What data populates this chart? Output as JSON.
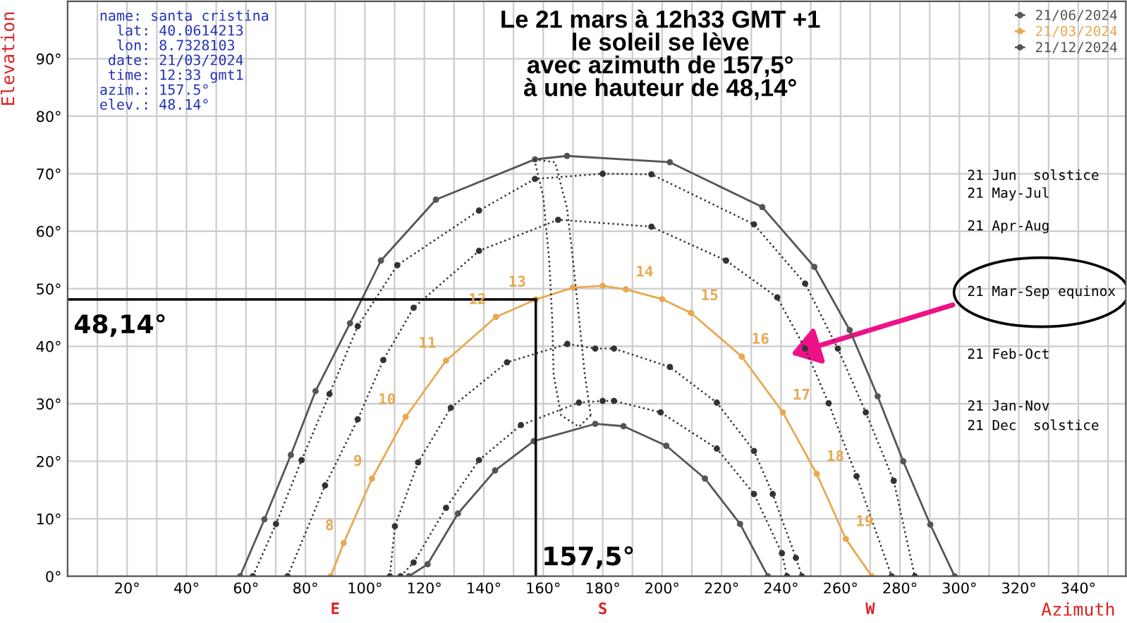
{
  "chart_data": {
    "type": "line",
    "xlabel": "Azimuth",
    "ylabel": "Elevation",
    "xlim": [
      0,
      356
    ],
    "ylim": [
      0,
      100
    ],
    "xticks": [
      {
        "value": 10,
        "label": null
      },
      {
        "value": 20,
        "label": "20°"
      },
      {
        "value": 30,
        "label": null
      },
      {
        "value": 40,
        "label": "40°"
      },
      {
        "value": 50,
        "label": null
      },
      {
        "value": 60,
        "label": "60°"
      },
      {
        "value": 70,
        "label": null
      },
      {
        "value": 80,
        "label": "80°"
      },
      {
        "value": 90,
        "label": null
      },
      {
        "value": 100,
        "label": "100°"
      },
      {
        "value": 110,
        "label": null
      },
      {
        "value": 120,
        "label": "120°"
      },
      {
        "value": 130,
        "label": null
      },
      {
        "value": 140,
        "label": "140°"
      },
      {
        "value": 150,
        "label": null
      },
      {
        "value": 160,
        "label": "160°"
      },
      {
        "value": 170,
        "label": null
      },
      {
        "value": 180,
        "label": "180°"
      },
      {
        "value": 190,
        "label": null
      },
      {
        "value": 200,
        "label": "200°"
      },
      {
        "value": 210,
        "label": null
      },
      {
        "value": 220,
        "label": "220°"
      },
      {
        "value": 230,
        "label": null
      },
      {
        "value": 240,
        "label": "240°"
      },
      {
        "value": 250,
        "label": null
      },
      {
        "value": 260,
        "label": "260°"
      },
      {
        "value": 270,
        "label": null
      },
      {
        "value": 280,
        "label": "280°"
      },
      {
        "value": 290,
        "label": null
      },
      {
        "value": 300,
        "label": "300°"
      },
      {
        "value": 310,
        "label": null
      },
      {
        "value": 320,
        "label": "320°"
      },
      {
        "value": 330,
        "label": null
      },
      {
        "value": 340,
        "label": "340°"
      },
      {
        "value": 350,
        "label": null
      }
    ],
    "yticks": [
      {
        "value": 0,
        "label": "0°"
      },
      {
        "value": 10,
        "label": "10°"
      },
      {
        "value": 20,
        "label": "20°"
      },
      {
        "value": 30,
        "label": "30°"
      },
      {
        "value": 40,
        "label": "40°"
      },
      {
        "value": 50,
        "label": "50°"
      },
      {
        "value": 60,
        "label": "60°"
      },
      {
        "value": 70,
        "label": "70°"
      },
      {
        "value": 80,
        "label": "80°"
      },
      {
        "value": 90,
        "label": "90°"
      }
    ],
    "grid": true,
    "legend": "top right",
    "marker": "circle",
    "series": [
      {
        "name": "21/06/2024",
        "color": "#555555",
        "line_style": "solid",
        "x": [
          58,
          66.2,
          75.1,
          83.4,
          95,
          105.4,
          123.9,
          157.2,
          168,
          202.6,
          233.7,
          251.2,
          263.1,
          272.5,
          281.1,
          290.2,
          298.4
        ],
        "values": [
          0,
          9.9,
          21.1,
          32.2,
          44,
          54.9,
          65.5,
          72.5,
          73.1,
          72,
          64.2,
          53.8,
          42.8,
          31.3,
          20,
          9,
          0
        ]
      },
      {
        "color": "#333333",
        "line_style": "dotted",
        "x": [
          62.3,
          70.1,
          78.7,
          88.1,
          97.6,
          110.9,
          138.4,
          157.2,
          180,
          196.4,
          230.9,
          248.1,
          259.1,
          268.5,
          277.9,
          285
        ],
        "values": [
          0,
          9.1,
          20.2,
          31.7,
          43.5,
          54.1,
          63.6,
          69.1,
          70,
          69.9,
          61.2,
          50.9,
          39.6,
          28.5,
          16.6,
          0
        ]
      },
      {
        "color": "#333333",
        "line_style": "dotted",
        "x": [
          74,
          86.6,
          97.6,
          106.2,
          116.4,
          138.4,
          165,
          196.4,
          221.5,
          238.7,
          248.1,
          256,
          265.4,
          277.2
        ],
        "values": [
          0,
          15.8,
          27.3,
          37.6,
          46.7,
          56.6,
          62,
          60.8,
          54.9,
          48.5,
          39.6,
          30.1,
          17.4,
          0
        ]
      },
      {
        "name": "21/03/2024",
        "color": "#e8a850",
        "line_style": "solid",
        "x": [
          88.5,
          92.9,
          102.4,
          113.7,
          127.3,
          144.1,
          157.5,
          170,
          180,
          187.8,
          200,
          209.7,
          226.8,
          240.6,
          252,
          261.8,
          270.5
        ],
        "values": [
          0,
          5.8,
          17,
          27.7,
          37.5,
          45.1,
          48.14,
          50.2,
          50.5,
          49.9,
          48.2,
          45.8,
          38.2,
          28.5,
          17.8,
          6.5,
          0
        ]
      },
      {
        "color": "#333333",
        "line_style": "dotted",
        "x": [
          108.4,
          110.1,
          117.9,
          128.9,
          147.8,
          168.1,
          177.5,
          183.8,
          202.6,
          218.4,
          230.9,
          237.2,
          245,
          247
        ],
        "values": [
          0,
          8.7,
          19.8,
          29.3,
          37.2,
          40.4,
          39.6,
          39.6,
          36.4,
          30.2,
          21.8,
          14.3,
          3.2,
          0
        ]
      },
      {
        "color": "#333333",
        "line_style": "dotted",
        "x": [
          112,
          116.4,
          127.3,
          138.4,
          152.5,
          172,
          180,
          183.8,
          199.5,
          218.4,
          230.9,
          240.3,
          242
        ],
        "values": [
          0,
          2.4,
          11.9,
          20.2,
          26.3,
          30.2,
          30.5,
          30.5,
          28.5,
          22.2,
          14.3,
          4,
          0
        ]
      },
      {
        "name": "21/12/2024",
        "color": "#555555",
        "line_style": "solid",
        "x": [
          114.8,
          121.1,
          131.3,
          143.8,
          156.8,
          177.5,
          187,
          201.4,
          214.4,
          226.2,
          235.6
        ],
        "values": [
          0,
          2.1,
          10.9,
          18.4,
          23.5,
          26.5,
          26.1,
          22.7,
          17,
          9.1,
          0
        ]
      },
      {
        "color": "#333333",
        "line_style": "dotted",
        "marker": "none",
        "x": [
          157,
          160,
          162,
          163,
          163.5,
          166,
          172,
          176
        ],
        "values": [
          72.5,
          66,
          55,
          45,
          35,
          28,
          26,
          28
        ]
      },
      {
        "color": "#333333",
        "line_style": "dotted",
        "marker": "none",
        "x": [
          157,
          164,
          168,
          170,
          172,
          174,
          176
        ],
        "values": [
          72.5,
          72,
          64,
          55,
          45,
          35,
          28
        ]
      }
    ],
    "ref_lines": [
      {
        "axis": "y",
        "value": 48.14,
        "label": "48,14°",
        "color": "#111111"
      },
      {
        "axis": "x",
        "value": 157.5,
        "label": "157,5°",
        "color": "#111111"
      }
    ],
    "annotations": [
      "name: santa cristina\n  lat: 40.0614213\n  lon: 8.7328103\n date: 21/03/2024\n time: 12:33 gmt1\nazim.: 157.5°\nelev.: 48.14°",
      "Le 21 mars à 12h33 GMT +1\nle soleil se lève\navec azimuth de 157,5°\nà une hauteur de 48,14°",
      "E",
      "S",
      "W",
      "21 Jun  solstice",
      "21 May-Jul",
      "21 Apr-Aug",
      "21 Mar-Sep equinox",
      "21 Feb-Oct",
      "21 Jan-Nov",
      "21 Dec  solstice",
      {
        "text": "8",
        "x": 92.9,
        "y": 5.8
      },
      {
        "text": "9",
        "x": 102.4,
        "y": 17
      },
      {
        "text": "10",
        "x": 113.7,
        "y": 27.7
      },
      {
        "text": "11",
        "x": 127.3,
        "y": 37.5
      },
      {
        "text": "12",
        "x": 144.1,
        "y": 45.1
      },
      {
        "text": "13",
        "x": 157.5,
        "y": 48.14
      },
      {
        "text": "14",
        "x": 187.8,
        "y": 49.9
      },
      {
        "text": "15",
        "x": 209.7,
        "y": 45.8
      },
      {
        "text": "16",
        "x": 226.8,
        "y": 38.2
      },
      {
        "text": "17",
        "x": 240.6,
        "y": 28.5
      },
      {
        "text": "18",
        "x": 252,
        "y": 17.8
      },
      {
        "text": "19",
        "x": 261.8,
        "y": 6.5
      }
    ]
  }
}
